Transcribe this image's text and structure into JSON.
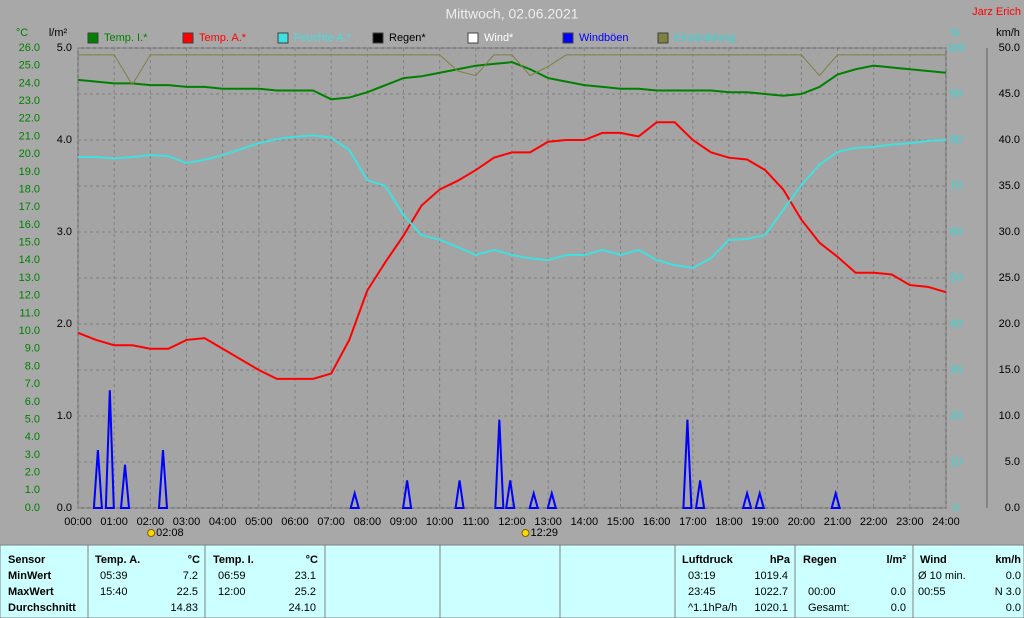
{
  "chart_data": {
    "type": "line",
    "title": "Mittwoch, 02.06.2021",
    "author": "Jarz Erich",
    "x": [
      0,
      0.5,
      1,
      1.5,
      2,
      2.5,
      3,
      3.5,
      4,
      4.5,
      5,
      5.5,
      6,
      6.5,
      7,
      7.5,
      8,
      8.5,
      9,
      9.5,
      10,
      10.5,
      11,
      11.5,
      12,
      12.5,
      13,
      13.5,
      14,
      14.5,
      15,
      15.5,
      16,
      16.5,
      17,
      17.5,
      18,
      18.5,
      19,
      19.5,
      20,
      20.5,
      21,
      21.5,
      22,
      22.5,
      23,
      23.5,
      24
    ],
    "xlim": [
      0,
      24
    ],
    "xticks": [
      {
        "value": 0,
        "label": "00:00"
      },
      {
        "value": 1,
        "label": "01:00"
      },
      {
        "value": 2,
        "label": "02:00"
      },
      {
        "value": 3,
        "label": "03:00"
      },
      {
        "value": 4,
        "label": "04:00"
      },
      {
        "value": 5,
        "label": "05:00"
      },
      {
        "value": 6,
        "label": "06:00"
      },
      {
        "value": 7,
        "label": "07:00"
      },
      {
        "value": 8,
        "label": "08:00"
      },
      {
        "value": 9,
        "label": "09:00"
      },
      {
        "value": 10,
        "label": "10:00"
      },
      {
        "value": 11,
        "label": "11:00"
      },
      {
        "value": 12,
        "label": "12:00"
      },
      {
        "value": 13,
        "label": "13:00"
      },
      {
        "value": 14,
        "label": "14:00"
      },
      {
        "value": 15,
        "label": "15:00"
      },
      {
        "value": 16,
        "label": "16:00"
      },
      {
        "value": 17,
        "label": "17:00"
      },
      {
        "value": 18,
        "label": "18:00"
      },
      {
        "value": 19,
        "label": "19:00"
      },
      {
        "value": 20,
        "label": "20:00"
      },
      {
        "value": 21,
        "label": "21:00"
      },
      {
        "value": 22,
        "label": "22:00"
      },
      {
        "value": 23,
        "label": "23:00"
      },
      {
        "value": 24,
        "label": "24:00"
      }
    ],
    "y_unit": "°C",
    "ylim": [
      0,
      26
    ],
    "yticks": [
      {
        "value": 0,
        "label": "0.0"
      },
      {
        "value": 1,
        "label": "1.0"
      },
      {
        "value": 2,
        "label": "2.0"
      },
      {
        "value": 3,
        "label": "3.0"
      },
      {
        "value": 4,
        "label": "4.0"
      },
      {
        "value": 5,
        "label": "5.0"
      },
      {
        "value": 6,
        "label": "6.0"
      },
      {
        "value": 7,
        "label": "7.0"
      },
      {
        "value": 8,
        "label": "8.0"
      },
      {
        "value": 9,
        "label": "9.0"
      },
      {
        "value": 10,
        "label": "10.0"
      },
      {
        "value": 11,
        "label": "11.0"
      },
      {
        "value": 12,
        "label": "12.0"
      },
      {
        "value": 13,
        "label": "13.0"
      },
      {
        "value": 14,
        "label": "14.0"
      },
      {
        "value": 15,
        "label": "15.0"
      },
      {
        "value": 16,
        "label": "16.0"
      },
      {
        "value": 17,
        "label": "17.0"
      },
      {
        "value": 18,
        "label": "18.0"
      },
      {
        "value": 19,
        "label": "19.0"
      },
      {
        "value": 20,
        "label": "20.0"
      },
      {
        "value": 21,
        "label": "21.0"
      },
      {
        "value": 22,
        "label": "22.0"
      },
      {
        "value": 23,
        "label": "23.0"
      },
      {
        "value": 24,
        "label": "24.0"
      },
      {
        "value": 25,
        "label": "25.0"
      },
      {
        "value": 26,
        "label": "26.0"
      }
    ],
    "rain_unit": "l/m²",
    "rain_lim": [
      0,
      5
    ],
    "rain_ticks": [
      {
        "value": 0,
        "label": "0.0"
      },
      {
        "value": 1,
        "label": "1.0"
      },
      {
        "value": 2,
        "label": "2.0"
      },
      {
        "value": 3,
        "label": "3.0"
      },
      {
        "value": 4,
        "label": "4.0"
      },
      {
        "value": 5,
        "label": "5.0"
      }
    ],
    "y2_unit": "%",
    "y2lim": [
      0,
      100
    ],
    "y2ticks": [
      0,
      10,
      20,
      30,
      40,
      50,
      60,
      70,
      80,
      90,
      100
    ],
    "y3_unit": "km/h",
    "y3lim": [
      0,
      50
    ],
    "y3ticks": [
      {
        "value": 0,
        "label": "0.0"
      },
      {
        "value": 5,
        "label": "5.0"
      },
      {
        "value": 10,
        "label": "10.0"
      },
      {
        "value": 15,
        "label": "15.0"
      },
      {
        "value": 20,
        "label": "20.0"
      },
      {
        "value": 25,
        "label": "25.0"
      },
      {
        "value": 30,
        "label": "30.0"
      },
      {
        "value": 35,
        "label": "35.0"
      },
      {
        "value": 40,
        "label": "40.0"
      },
      {
        "value": 45,
        "label": "45.0"
      },
      {
        "value": 50,
        "label": "50.0"
      }
    ],
    "grid": true,
    "series": [
      {
        "name": "Temp. I.*",
        "color": "#008000",
        "values": [
          24.2,
          24.1,
          24.0,
          24.0,
          23.9,
          23.9,
          23.8,
          23.8,
          23.7,
          23.7,
          23.7,
          23.6,
          23.6,
          23.6,
          23.1,
          23.2,
          23.5,
          23.9,
          24.3,
          24.4,
          24.6,
          24.8,
          25.0,
          25.1,
          25.2,
          24.8,
          24.3,
          24.1,
          23.9,
          23.8,
          23.7,
          23.7,
          23.6,
          23.6,
          23.6,
          23.6,
          23.5,
          23.5,
          23.4,
          23.3,
          23.4,
          23.8,
          24.5,
          24.8,
          25.0,
          24.9,
          24.8,
          24.7,
          24.6
        ]
      },
      {
        "name": "Temp. A.*",
        "color": "#ff0000",
        "values": [
          9.9,
          9.5,
          9.2,
          9.2,
          9.0,
          9.0,
          9.5,
          9.6,
          9.0,
          8.4,
          7.8,
          7.3,
          7.3,
          7.3,
          7.6,
          9.5,
          12.3,
          13.9,
          15.4,
          17.1,
          18.0,
          18.5,
          19.1,
          19.8,
          20.1,
          20.1,
          20.7,
          20.8,
          20.8,
          21.2,
          21.2,
          21.0,
          21.8,
          21.8,
          20.8,
          20.1,
          19.8,
          19.7,
          19.1,
          18.0,
          16.3,
          15.0,
          14.2,
          13.3,
          13.3,
          13.2,
          12.6,
          12.5,
          12.2
        ]
      },
      {
        "name": "Feuchte A.*",
        "color": "#40e0e0",
        "axis": "y2",
        "values": [
          76.3,
          76.3,
          76.0,
          76.3,
          76.7,
          76.5,
          75.0,
          75.7,
          76.7,
          78.0,
          79.3,
          80.2,
          80.7,
          81.0,
          80.5,
          77.8,
          71.3,
          70.0,
          63.7,
          59.3,
          58.3,
          56.7,
          55.0,
          56.1,
          55.0,
          54.3,
          53.9,
          55.0,
          55.0,
          56.1,
          55.0,
          56.1,
          53.9,
          52.8,
          52.2,
          54.3,
          58.3,
          58.5,
          59.3,
          64.8,
          70.2,
          74.6,
          77.4,
          78.3,
          78.5,
          79.0,
          79.3,
          79.8,
          80.0
        ]
      },
      {
        "name": "Regen*",
        "color": "#000000"
      },
      {
        "name": "Wind*",
        "color": "#ffffff"
      },
      {
        "name": "Windböen",
        "color": "#0000ff",
        "axis": "y3",
        "kind": "spikes",
        "x": [
          0.55,
          0.88,
          1.3,
          2.35,
          7.65,
          9.1,
          10.55,
          11.65,
          11.95,
          12.6,
          13.1,
          16.85,
          17.2,
          18.5,
          18.85,
          20.95
        ],
        "values": [
          6.3,
          12.8,
          4.7,
          6.3,
          1.6,
          3.0,
          3.0,
          9.6,
          3.0,
          1.6,
          1.6,
          9.6,
          3.0,
          1.6,
          1.6,
          1.6
        ]
      },
      {
        "name": "Einstrahlung",
        "color": "#808040",
        "axis": "y2",
        "values": [
          98.5,
          98.5,
          98.5,
          92,
          98.5,
          98.5,
          98.5,
          98.5,
          98.5,
          98.5,
          98.5,
          98.5,
          98.5,
          98.5,
          98.5,
          98.5,
          98.5,
          98.5,
          98.5,
          98.5,
          98.5,
          95,
          94,
          98.5,
          98.5,
          94,
          96,
          98.5,
          98.5,
          98.5,
          98.5,
          98.5,
          98.5,
          98.5,
          98.5,
          98.5,
          98.5,
          98.5,
          98.5,
          98.5,
          98.5,
          94,
          98.5,
          98.5,
          98.5,
          98.5,
          98.5,
          98.5,
          98.5
        ]
      }
    ],
    "annotations": [
      {
        "x": 2.133,
        "label": "02:08"
      },
      {
        "x": 12.483,
        "label": "12:29"
      }
    ]
  },
  "summary": {
    "sensor": {
      "header": "Sensor",
      "rows": [
        "MinWert",
        "MaxWert",
        "Durchschnitt"
      ]
    },
    "temp_a": {
      "header": "Temp. A.",
      "unit": "°C",
      "min": [
        "05:39",
        "7.2"
      ],
      "max": [
        "15:40",
        "22.5"
      ],
      "avg": "14.83"
    },
    "temp_i": {
      "header": "Temp. I.",
      "unit": "°C",
      "min": [
        "06:59",
        "23.1"
      ],
      "max": [
        "12:00",
        "25.2"
      ],
      "avg": "24.10"
    },
    "pressure": {
      "header": "Luftdruck",
      "unit": "hPa",
      "min": [
        "03:19",
        "1019.4"
      ],
      "max": [
        "23:45",
        "1022.7"
      ],
      "avg": [
        "^1.1hPa/h",
        "1020.1"
      ]
    },
    "rain": {
      "header": "Regen",
      "unit": "l/m²",
      "max": [
        "00:00",
        "0.0"
      ],
      "total": [
        "Gesamt:",
        "0.0"
      ]
    },
    "wind": {
      "header": "Wind",
      "unit": "km/h",
      "min": [
        "Ø 10 min.",
        "0.0"
      ],
      "max": [
        "00:55",
        "N 3.0"
      ],
      "avg": "0.0"
    }
  }
}
